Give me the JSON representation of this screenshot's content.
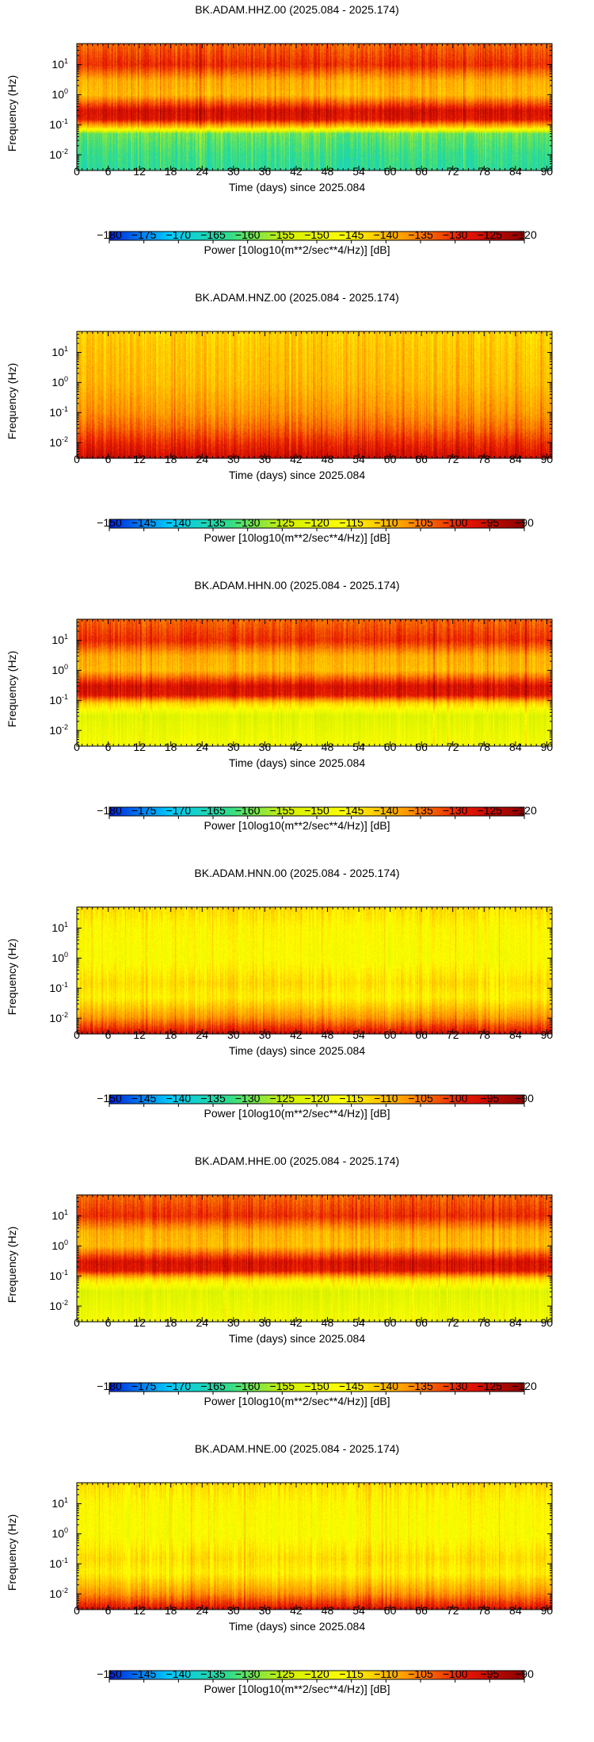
{
  "figure_title": "",
  "chart_data": [
    {
      "type": "heatmap",
      "title": "BK.ADAM.HHZ.00 (2025.084 - 2025.174)",
      "xlabel": "Time (days) since 2025.084",
      "ylabel": "Frequency (Hz)",
      "x_ticks": [
        0,
        6,
        12,
        18,
        24,
        30,
        36,
        42,
        48,
        54,
        60,
        66,
        72,
        78,
        84,
        90
      ],
      "xlim": [
        0,
        91
      ],
      "y_scale": "log",
      "y_ticks": [
        {
          "base": "10",
          "exp": "1"
        },
        {
          "base": "10",
          "exp": "0"
        },
        {
          "base": "10",
          "exp": "-1"
        },
        {
          "base": "10",
          "exp": "-2"
        }
      ],
      "ylim": [
        0.003,
        50
      ],
      "colorbar": {
        "label": "Power [10log10(m**2/sec**4/Hz)] [dB]",
        "range": [
          -180,
          -120
        ],
        "ticks": [
          "−180",
          "−175",
          "−170",
          "−165",
          "−160",
          "−155",
          "−150",
          "−145",
          "−140",
          "−135",
          "−130",
          "−125",
          "−120"
        ],
        "colormap": [
          "#0022dd",
          "#00c8ff",
          "#2edc8c",
          "#d4f000",
          "#ffff00",
          "#ff9a00",
          "#e81600",
          "#8a0000"
        ]
      },
      "band_profile_db": [
        {
          "f": 50,
          "db": -134
        },
        {
          "f": 10,
          "db": -130
        },
        {
          "f": 3,
          "db": -139
        },
        {
          "f": 1,
          "db": -140
        },
        {
          "f": 0.3,
          "db": -127
        },
        {
          "f": 0.15,
          "db": -128
        },
        {
          "f": 0.08,
          "db": -142
        },
        {
          "f": 0.05,
          "db": -160
        },
        {
          "f": 0.01,
          "db": -163
        },
        {
          "f": 0.003,
          "db": -164
        }
      ]
    },
    {
      "type": "heatmap",
      "title": "BK.ADAM.HNZ.00 (2025.084 - 2025.174)",
      "xlabel": "Time (days) since 2025.084",
      "ylabel": "Frequency (Hz)",
      "x_ticks": [
        0,
        6,
        12,
        18,
        24,
        30,
        36,
        42,
        48,
        54,
        60,
        66,
        72,
        78,
        84,
        90
      ],
      "xlim": [
        0,
        91
      ],
      "y_scale": "log",
      "y_ticks": [
        {
          "base": "10",
          "exp": "1"
        },
        {
          "base": "10",
          "exp": "0"
        },
        {
          "base": "10",
          "exp": "-1"
        },
        {
          "base": "10",
          "exp": "-2"
        }
      ],
      "ylim": [
        0.003,
        50
      ],
      "colorbar": {
        "label": "Power [10log10(m**2/sec**4/Hz)] [dB]",
        "range": [
          -150,
          -90
        ],
        "ticks": [
          "−150",
          "−145",
          "−140",
          "−135",
          "−130",
          "−125",
          "−120",
          "−115",
          "−110",
          "−105",
          "−100",
          "−95",
          "−90"
        ],
        "colormap": [
          "#0022dd",
          "#00c8ff",
          "#2edc8c",
          "#d4f000",
          "#ffff00",
          "#ff9a00",
          "#e81600",
          "#8a0000"
        ]
      },
      "band_profile_db": [
        {
          "f": 50,
          "db": -112
        },
        {
          "f": 10,
          "db": -111
        },
        {
          "f": 1,
          "db": -110
        },
        {
          "f": 0.1,
          "db": -107
        },
        {
          "f": 0.03,
          "db": -104
        },
        {
          "f": 0.01,
          "db": -100
        },
        {
          "f": 0.003,
          "db": -96
        }
      ]
    },
    {
      "type": "heatmap",
      "title": "BK.ADAM.HHN.00 (2025.084 - 2025.174)",
      "xlabel": "Time (days) since 2025.084",
      "ylabel": "Frequency (Hz)",
      "x_ticks": [
        0,
        6,
        12,
        18,
        24,
        30,
        36,
        42,
        48,
        54,
        60,
        66,
        72,
        78,
        84,
        90
      ],
      "xlim": [
        0,
        91
      ],
      "y_scale": "log",
      "y_ticks": [
        {
          "base": "10",
          "exp": "1"
        },
        {
          "base": "10",
          "exp": "0"
        },
        {
          "base": "10",
          "exp": "-1"
        },
        {
          "base": "10",
          "exp": "-2"
        }
      ],
      "ylim": [
        0.003,
        50
      ],
      "colorbar": {
        "label": "Power [10log10(m**2/sec**4/Hz)] [dB]",
        "range": [
          -180,
          -120
        ],
        "ticks": [
          "−180",
          "−175",
          "−170",
          "−165",
          "−160",
          "−155",
          "−150",
          "−145",
          "−140",
          "−135",
          "−130",
          "−125",
          "−120"
        ],
        "colormap": [
          "#0022dd",
          "#00c8ff",
          "#2edc8c",
          "#d4f000",
          "#ffff00",
          "#ff9a00",
          "#e81600",
          "#8a0000"
        ]
      },
      "band_profile_db": [
        {
          "f": 50,
          "db": -134
        },
        {
          "f": 10,
          "db": -130
        },
        {
          "f": 3,
          "db": -139
        },
        {
          "f": 1,
          "db": -140
        },
        {
          "f": 0.3,
          "db": -127
        },
        {
          "f": 0.15,
          "db": -128
        },
        {
          "f": 0.08,
          "db": -142
        },
        {
          "f": 0.03,
          "db": -152
        },
        {
          "f": 0.01,
          "db": -150
        },
        {
          "f": 0.003,
          "db": -148
        }
      ]
    },
    {
      "type": "heatmap",
      "title": "BK.ADAM.HNN.00 (2025.084 - 2025.174)",
      "xlabel": "Time (days) since 2025.084",
      "ylabel": "Frequency (Hz)",
      "x_ticks": [
        0,
        6,
        12,
        18,
        24,
        30,
        36,
        42,
        48,
        54,
        60,
        66,
        72,
        78,
        84,
        90
      ],
      "xlim": [
        0,
        91
      ],
      "y_scale": "log",
      "y_ticks": [
        {
          "base": "10",
          "exp": "1"
        },
        {
          "base": "10",
          "exp": "0"
        },
        {
          "base": "10",
          "exp": "-1"
        },
        {
          "base": "10",
          "exp": "-2"
        }
      ],
      "ylim": [
        0.003,
        50
      ],
      "colorbar": {
        "label": "Power [10log10(m**2/sec**4/Hz)] [dB]",
        "range": [
          -150,
          -90
        ],
        "ticks": [
          "−150",
          "−145",
          "−140",
          "−135",
          "−130",
          "−125",
          "−120",
          "−115",
          "−110",
          "−105",
          "−100",
          "−95",
          "−90"
        ],
        "colormap": [
          "#0022dd",
          "#00c8ff",
          "#2edc8c",
          "#d4f000",
          "#ffff00",
          "#ff9a00",
          "#e81600",
          "#8a0000"
        ]
      },
      "band_profile_db": [
        {
          "f": 50,
          "db": -113
        },
        {
          "f": 10,
          "db": -116
        },
        {
          "f": 1,
          "db": -117
        },
        {
          "f": 0.15,
          "db": -113
        },
        {
          "f": 0.05,
          "db": -115
        },
        {
          "f": 0.01,
          "db": -107
        },
        {
          "f": 0.003,
          "db": -97
        }
      ]
    },
    {
      "type": "heatmap",
      "title": "BK.ADAM.HHE.00 (2025.084 - 2025.174)",
      "xlabel": "Time (days) since 2025.084",
      "ylabel": "Frequency (Hz)",
      "x_ticks": [
        0,
        6,
        12,
        18,
        24,
        30,
        36,
        42,
        48,
        54,
        60,
        66,
        72,
        78,
        84,
        90
      ],
      "xlim": [
        0,
        91
      ],
      "y_scale": "log",
      "y_ticks": [
        {
          "base": "10",
          "exp": "1"
        },
        {
          "base": "10",
          "exp": "0"
        },
        {
          "base": "10",
          "exp": "-1"
        },
        {
          "base": "10",
          "exp": "-2"
        }
      ],
      "ylim": [
        0.003,
        50
      ],
      "colorbar": {
        "label": "Power [10log10(m**2/sec**4/Hz)] [dB]",
        "range": [
          -180,
          -120
        ],
        "ticks": [
          "−180",
          "−175",
          "−170",
          "−165",
          "−160",
          "−155",
          "−150",
          "−145",
          "−140",
          "−135",
          "−130",
          "−125",
          "−120"
        ],
        "colormap": [
          "#0022dd",
          "#00c8ff",
          "#2edc8c",
          "#d4f000",
          "#ffff00",
          "#ff9a00",
          "#e81600",
          "#8a0000"
        ]
      },
      "band_profile_db": [
        {
          "f": 50,
          "db": -134
        },
        {
          "f": 10,
          "db": -130
        },
        {
          "f": 3,
          "db": -139
        },
        {
          "f": 1,
          "db": -140
        },
        {
          "f": 0.3,
          "db": -127
        },
        {
          "f": 0.15,
          "db": -128
        },
        {
          "f": 0.08,
          "db": -142
        },
        {
          "f": 0.03,
          "db": -152
        },
        {
          "f": 0.01,
          "db": -150
        },
        {
          "f": 0.003,
          "db": -148
        }
      ]
    },
    {
      "type": "heatmap",
      "title": "BK.ADAM.HNE.00 (2025.084 - 2025.174)",
      "xlabel": "Time (days) since 2025.084",
      "ylabel": "Frequency (Hz)",
      "x_ticks": [
        0,
        6,
        12,
        18,
        24,
        30,
        36,
        42,
        48,
        54,
        60,
        66,
        72,
        78,
        84,
        90
      ],
      "xlim": [
        0,
        91
      ],
      "y_scale": "log",
      "y_ticks": [
        {
          "base": "10",
          "exp": "1"
        },
        {
          "base": "10",
          "exp": "0"
        },
        {
          "base": "10",
          "exp": "-1"
        },
        {
          "base": "10",
          "exp": "-2"
        }
      ],
      "ylim": [
        0.003,
        50
      ],
      "colorbar": {
        "label": "Power [10log10(m**2/sec**4/Hz)] [dB]",
        "range": [
          -150,
          -90
        ],
        "ticks": [
          "−150",
          "−145",
          "−140",
          "−135",
          "−130",
          "−125",
          "−120",
          "−115",
          "−110",
          "−105",
          "−100",
          "−95",
          "−90"
        ],
        "colormap": [
          "#0022dd",
          "#00c8ff",
          "#2edc8c",
          "#d4f000",
          "#ffff00",
          "#ff9a00",
          "#e81600",
          "#8a0000"
        ]
      },
      "band_profile_db": [
        {
          "f": 50,
          "db": -113
        },
        {
          "f": 10,
          "db": -116
        },
        {
          "f": 1,
          "db": -117
        },
        {
          "f": 0.15,
          "db": -113
        },
        {
          "f": 0.05,
          "db": -115
        },
        {
          "f": 0.01,
          "db": -107
        },
        {
          "f": 0.003,
          "db": -97
        }
      ]
    }
  ]
}
